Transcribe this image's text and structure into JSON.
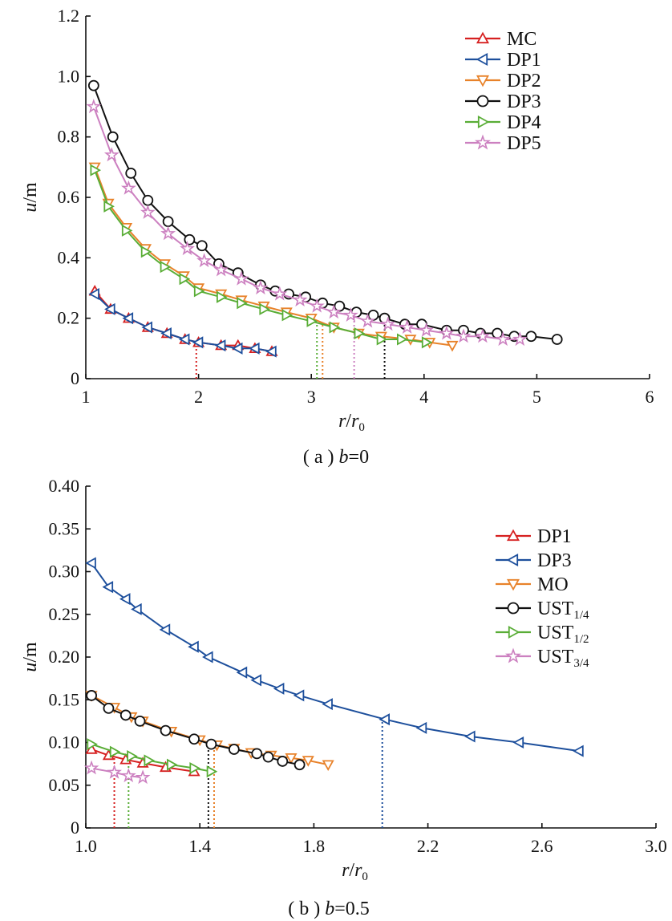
{
  "chart_data": [
    {
      "type": "line",
      "caption": "( a ) b=0",
      "xlabel": "r/r0",
      "ylabel": "u/m",
      "xlim": [
        1,
        6
      ],
      "ylim": [
        0,
        1.2
      ],
      "xticks": [
        "1",
        "2",
        "3",
        "4",
        "5",
        "6"
      ],
      "yticks": [
        "0",
        "0.2",
        "0.4",
        "0.6",
        "0.8",
        "1.0",
        "1.2"
      ],
      "legend_position": "top-right",
      "series": [
        {
          "name": "MC",
          "color": "#d62020",
          "marker": "triangle-up",
          "x": [
            1.08,
            1.22,
            1.38,
            1.55,
            1.72,
            1.88,
            2.0,
            2.2,
            2.35,
            2.5,
            2.65
          ],
          "y": [
            0.29,
            0.23,
            0.2,
            0.17,
            0.15,
            0.13,
            0.12,
            0.11,
            0.11,
            0.1,
            0.09
          ]
        },
        {
          "name": "DP1",
          "color": "#1d4f9c",
          "marker": "triangle-left",
          "x": [
            1.08,
            1.22,
            1.38,
            1.55,
            1.72,
            1.88,
            2.0,
            2.2,
            2.35,
            2.5,
            2.65
          ],
          "y": [
            0.28,
            0.23,
            0.2,
            0.17,
            0.15,
            0.13,
            0.12,
            0.11,
            0.1,
            0.1,
            0.09
          ]
        },
        {
          "name": "DP2",
          "color": "#e8822a",
          "marker": "triangle-down",
          "x": [
            1.08,
            1.2,
            1.36,
            1.53,
            1.7,
            1.87,
            2.0,
            2.2,
            2.38,
            2.58,
            2.78,
            3.0,
            3.2,
            3.42,
            3.62,
            3.88,
            4.05,
            4.25
          ],
          "y": [
            0.7,
            0.58,
            0.5,
            0.43,
            0.38,
            0.34,
            0.3,
            0.28,
            0.26,
            0.24,
            0.22,
            0.2,
            0.17,
            0.15,
            0.14,
            0.13,
            0.12,
            0.11
          ]
        },
        {
          "name": "DP3",
          "color": "#111111",
          "marker": "circle",
          "x": [
            1.07,
            1.24,
            1.4,
            1.55,
            1.73,
            1.92,
            2.03,
            2.18,
            2.35,
            2.55,
            2.68,
            2.8,
            2.95,
            3.1,
            3.25,
            3.4,
            3.55,
            3.65,
            3.83,
            3.98,
            4.2,
            4.35,
            4.5,
            4.65,
            4.8,
            4.95,
            5.18
          ],
          "y": [
            0.97,
            0.8,
            0.68,
            0.59,
            0.52,
            0.46,
            0.44,
            0.38,
            0.35,
            0.31,
            0.29,
            0.28,
            0.27,
            0.25,
            0.24,
            0.22,
            0.21,
            0.2,
            0.18,
            0.18,
            0.16,
            0.16,
            0.15,
            0.15,
            0.14,
            0.14,
            0.13
          ]
        },
        {
          "name": "DP4",
          "color": "#59ad36",
          "marker": "triangle-right",
          "x": [
            1.08,
            1.2,
            1.36,
            1.53,
            1.7,
            1.87,
            2.0,
            2.2,
            2.38,
            2.58,
            2.78,
            3.0,
            3.2,
            3.42,
            3.62,
            3.8,
            4.02
          ],
          "y": [
            0.69,
            0.57,
            0.49,
            0.42,
            0.37,
            0.33,
            0.29,
            0.27,
            0.25,
            0.23,
            0.21,
            0.19,
            0.17,
            0.15,
            0.13,
            0.13,
            0.12
          ]
        },
        {
          "name": "DP5",
          "color": "#cc80c0",
          "marker": "star",
          "x": [
            1.07,
            1.23,
            1.38,
            1.55,
            1.73,
            1.9,
            2.05,
            2.2,
            2.38,
            2.55,
            2.72,
            2.9,
            3.05,
            3.2,
            3.35,
            3.5,
            3.68,
            3.85,
            4.02,
            4.2,
            4.35,
            4.52,
            4.7,
            4.85
          ],
          "y": [
            0.9,
            0.74,
            0.63,
            0.55,
            0.48,
            0.43,
            0.39,
            0.36,
            0.33,
            0.3,
            0.28,
            0.26,
            0.24,
            0.22,
            0.21,
            0.19,
            0.18,
            0.17,
            0.16,
            0.15,
            0.14,
            0.14,
            0.13,
            0.13
          ]
        }
      ],
      "vlines": [
        {
          "x": 1.98,
          "color": "#d62020"
        },
        {
          "x": 3.05,
          "color": "#59ad36"
        },
        {
          "x": 3.1,
          "color": "#e8822a"
        },
        {
          "x": 3.38,
          "color": "#cc80c0"
        },
        {
          "x": 3.65,
          "color": "#111111"
        }
      ]
    },
    {
      "type": "line",
      "caption": "( b ) b=0.5",
      "xlabel": "r/r0",
      "ylabel": "u/m",
      "xlim": [
        1.0,
        3.0
      ],
      "ylim": [
        0,
        0.4
      ],
      "xticks": [
        "1.0",
        "1.4",
        "1.8",
        "2.2",
        "2.6",
        "3.0"
      ],
      "yticks": [
        "0",
        "0.05",
        "0.10",
        "0.15",
        "0.20",
        "0.25",
        "0.30",
        "0.35",
        "0.40"
      ],
      "legend_position": "right",
      "series": [
        {
          "name": "DP1",
          "sub": "",
          "color": "#d62020",
          "marker": "triangle-up",
          "x": [
            1.02,
            1.08,
            1.14,
            1.2,
            1.28,
            1.38
          ],
          "y": [
            0.092,
            0.085,
            0.08,
            0.076,
            0.071,
            0.066
          ]
        },
        {
          "name": "DP3",
          "sub": "",
          "color": "#1d4f9c",
          "marker": "triangle-left",
          "x": [
            1.02,
            1.08,
            1.14,
            1.18,
            1.28,
            1.38,
            1.43,
            1.55,
            1.6,
            1.68,
            1.75,
            1.85,
            2.05,
            2.18,
            2.35,
            2.52,
            2.73
          ],
          "y": [
            0.31,
            0.282,
            0.268,
            0.256,
            0.232,
            0.212,
            0.2,
            0.182,
            0.173,
            0.163,
            0.155,
            0.145,
            0.127,
            0.117,
            0.107,
            0.1,
            0.09
          ]
        },
        {
          "name": "MO",
          "sub": "",
          "color": "#e8822a",
          "marker": "triangle-down",
          "x": [
            1.02,
            1.1,
            1.16,
            1.2,
            1.3,
            1.4,
            1.46,
            1.52,
            1.58,
            1.65,
            1.72,
            1.78,
            1.85
          ],
          "y": [
            0.155,
            0.141,
            0.13,
            0.125,
            0.113,
            0.103,
            0.097,
            0.093,
            0.088,
            0.085,
            0.082,
            0.079,
            0.074
          ]
        },
        {
          "name": "UST",
          "sub": "1/4",
          "color": "#111111",
          "marker": "circle",
          "x": [
            1.02,
            1.08,
            1.14,
            1.19,
            1.28,
            1.38,
            1.44,
            1.52,
            1.6,
            1.64,
            1.69,
            1.75
          ],
          "y": [
            0.155,
            0.14,
            0.132,
            0.125,
            0.114,
            0.104,
            0.098,
            0.092,
            0.087,
            0.083,
            0.078,
            0.074
          ]
        },
        {
          "name": "UST",
          "sub": "1/2",
          "color": "#59ad36",
          "marker": "triangle-right",
          "x": [
            1.02,
            1.1,
            1.16,
            1.22,
            1.3,
            1.38,
            1.44
          ],
          "y": [
            0.098,
            0.089,
            0.084,
            0.079,
            0.074,
            0.07,
            0.066
          ]
        },
        {
          "name": "UST",
          "sub": "3/4",
          "color": "#cc80c0",
          "marker": "star",
          "x": [
            1.02,
            1.1,
            1.15,
            1.2
          ],
          "y": [
            0.07,
            0.065,
            0.061,
            0.059
          ]
        }
      ],
      "vlines": [
        {
          "x": 1.1,
          "color": "#d62020"
        },
        {
          "x": 1.15,
          "color": "#59ad36"
        },
        {
          "x": 1.43,
          "color": "#111111"
        },
        {
          "x": 1.45,
          "color": "#e8822a"
        },
        {
          "x": 2.04,
          "color": "#1d4f9c"
        }
      ]
    }
  ]
}
